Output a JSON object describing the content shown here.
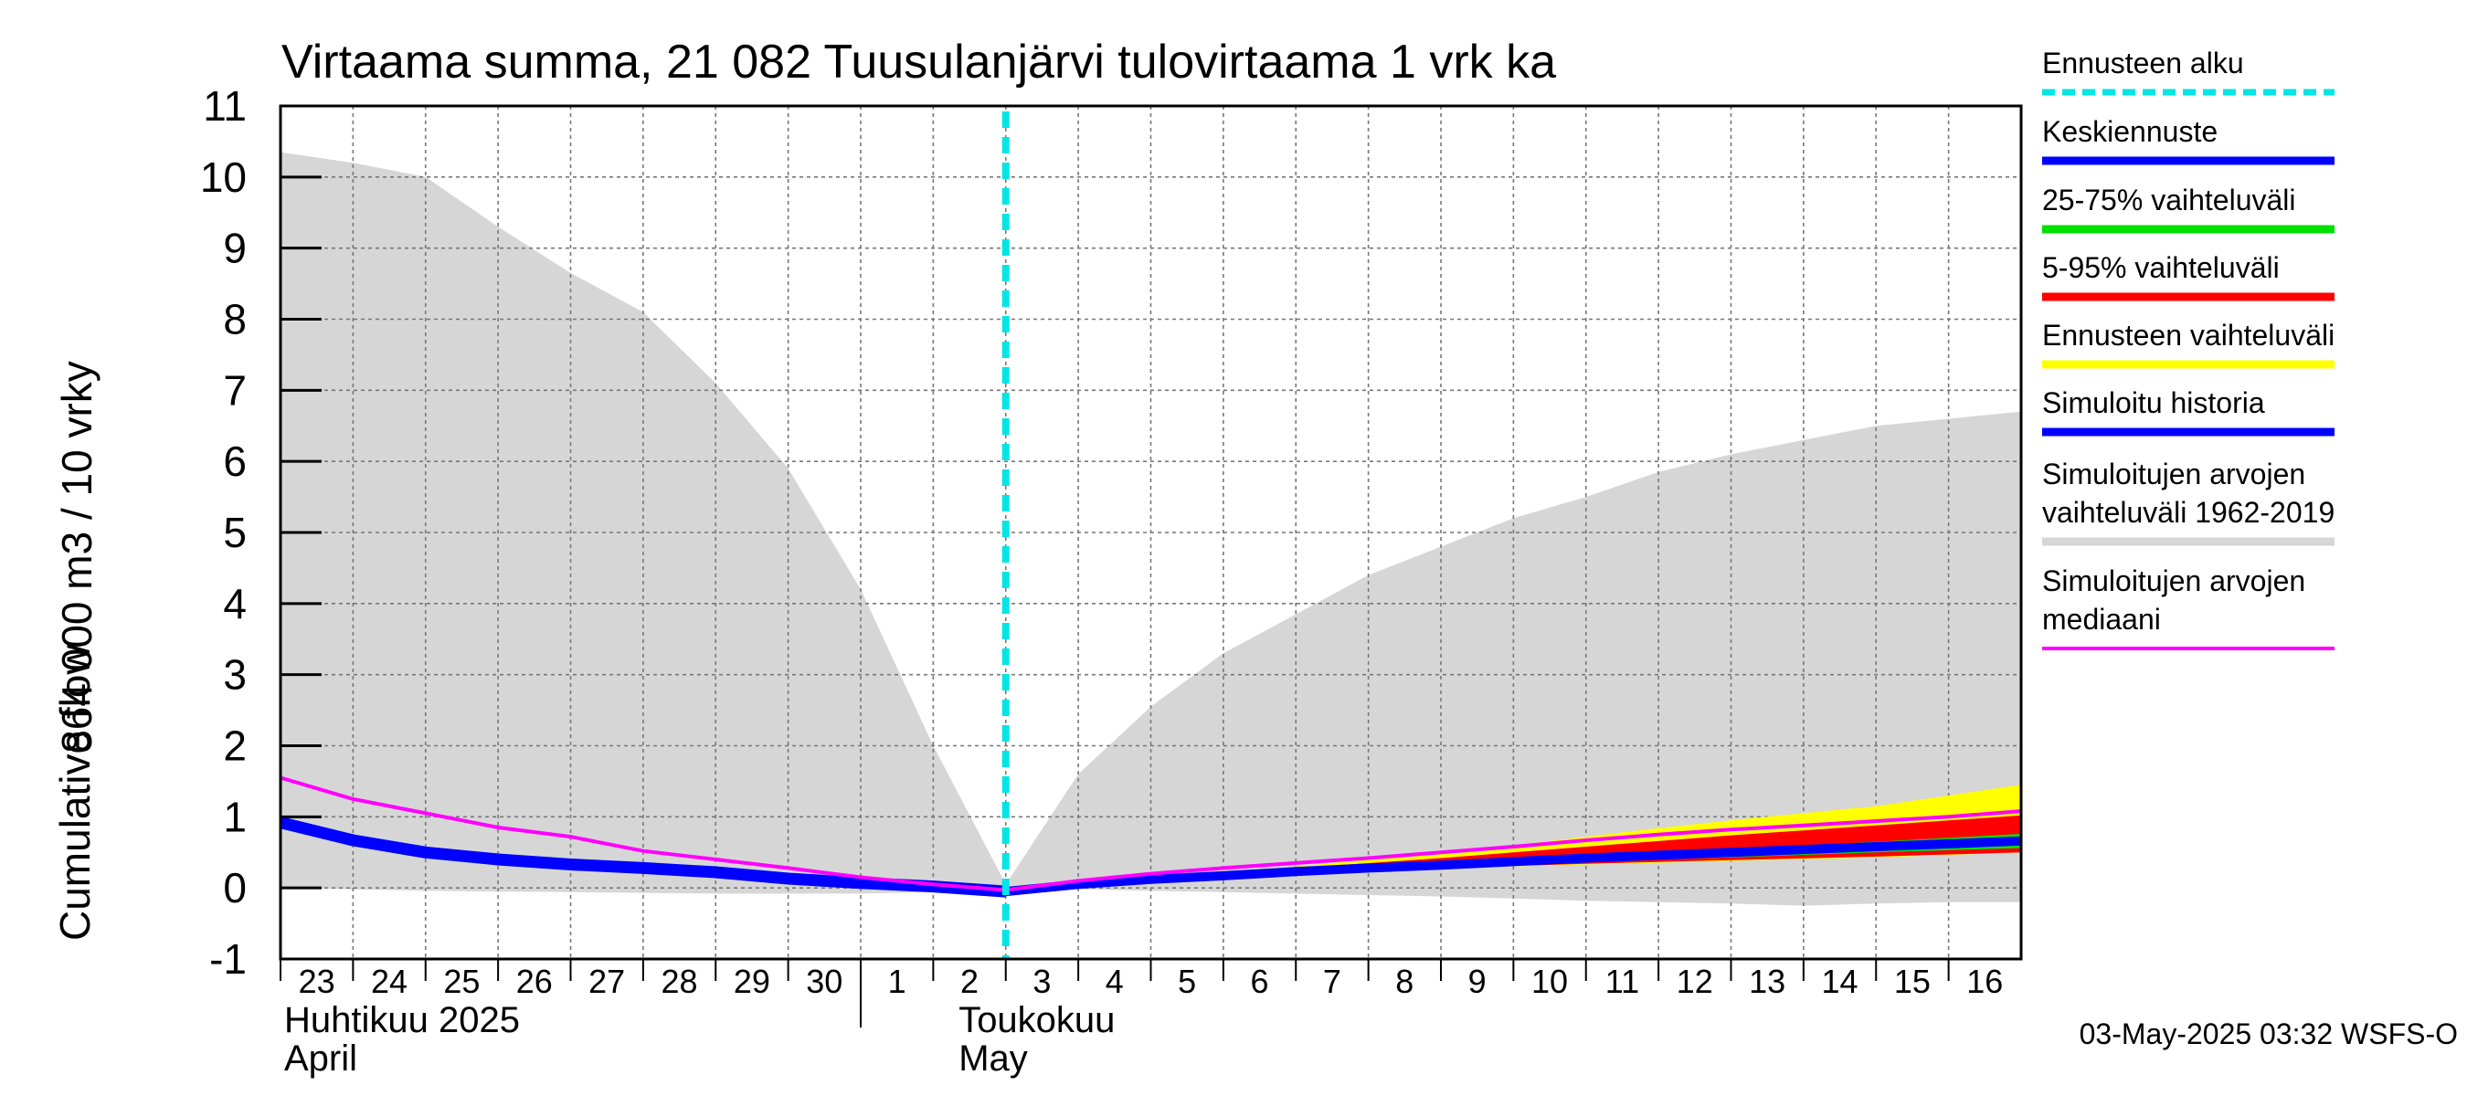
{
  "chart_data": {
    "type": "area",
    "title": "Virtaama summa, 21 082 Tuusulanjärvi tulovirtaama 1 vrk ka",
    "ylabel_line1": "Cumulative flow",
    "ylabel_line2": "864 000 m3 / 10 vrky",
    "ylim": [
      -1,
      11
    ],
    "yticks": [
      -1,
      0,
      1,
      2,
      3,
      4,
      5,
      6,
      7,
      8,
      9,
      10,
      11
    ],
    "x_start": "2025-04-23",
    "x_end": "2025-05-16",
    "xtick_labels": [
      "23",
      "24",
      "25",
      "26",
      "27",
      "28",
      "29",
      "30",
      "1",
      "2",
      "3",
      "4",
      "5",
      "6",
      "7",
      "8",
      "9",
      "10",
      "11",
      "12",
      "13",
      "14",
      "15",
      "16"
    ],
    "month_labels": [
      {
        "name": "Huhtikuu  2025",
        "english": "April",
        "at_day": 0
      },
      {
        "name": "Toukokuu",
        "english": "May",
        "at_day": 9.3
      }
    ],
    "month_boundary_day": 8,
    "forecast_start_day": 10,
    "grid": true,
    "series": [
      {
        "name": "Simuloitujen arvojen vaihteluväli 1962-2019 (upper)",
        "x": [
          0,
          1,
          2,
          3,
          4,
          5,
          6,
          7,
          8,
          9,
          10,
          11,
          12,
          13,
          14,
          15,
          16,
          17,
          18,
          19,
          20,
          21,
          22,
          23,
          24
        ],
        "values": [
          10.35,
          10.2,
          10.0,
          9.3,
          8.65,
          8.1,
          7.1,
          5.9,
          4.2,
          2.0,
          0.05,
          1.6,
          2.55,
          3.3,
          3.85,
          4.4,
          4.8,
          5.2,
          5.5,
          5.85,
          6.1,
          6.3,
          6.5,
          6.6,
          6.7
        ]
      },
      {
        "name": "Simuloitujen arvojen vaihteluväli 1962-2019 (lower)",
        "x": [
          0,
          1,
          2,
          3,
          4,
          5,
          6,
          7,
          8,
          9,
          10,
          11,
          12,
          13,
          14,
          15,
          16,
          17,
          18,
          19,
          20,
          21,
          22,
          23,
          24
        ],
        "values": [
          0.0,
          -0.02,
          -0.04,
          -0.05,
          -0.06,
          -0.07,
          -0.08,
          -0.08,
          -0.08,
          -0.06,
          0.0,
          -0.02,
          -0.04,
          -0.06,
          -0.08,
          -0.1,
          -0.12,
          -0.15,
          -0.18,
          -0.2,
          -0.22,
          -0.25,
          -0.22,
          -0.2,
          -0.2
        ]
      },
      {
        "name": "Ennusteen vaihteluväli (upper)",
        "x": [
          10,
          14,
          16,
          17,
          18,
          19,
          20,
          21,
          22,
          23,
          24
        ],
        "values": [
          0.0,
          0.3,
          0.5,
          0.6,
          0.72,
          0.84,
          0.95,
          1.05,
          1.15,
          1.3,
          1.45
        ]
      },
      {
        "name": "Ennusteen vaihteluväli (lower)",
        "x": [
          10,
          14,
          16,
          18,
          20,
          22,
          24
        ],
        "values": [
          0.0,
          0.22,
          0.28,
          0.33,
          0.38,
          0.43,
          0.5
        ]
      },
      {
        "name": "5-95% vaihteluväli (upper)",
        "x": [
          10,
          14,
          16,
          18,
          20,
          22,
          24
        ],
        "values": [
          0.0,
          0.28,
          0.42,
          0.58,
          0.74,
          0.88,
          1.02
        ]
      },
      {
        "name": "5-95% vaihteluväli (lower)",
        "x": [
          10,
          14,
          16,
          18,
          20,
          22,
          24
        ],
        "values": [
          0.0,
          0.22,
          0.28,
          0.34,
          0.39,
          0.44,
          0.5
        ]
      },
      {
        "name": "25-75% vaihteluväli (upper)",
        "x": [
          10,
          14,
          16,
          18,
          20,
          22,
          24
        ],
        "values": [
          0.0,
          0.26,
          0.35,
          0.45,
          0.55,
          0.65,
          0.76
        ]
      },
      {
        "name": "25-75% vaihteluväli (lower)",
        "x": [
          10,
          14,
          16,
          18,
          20,
          22,
          24
        ],
        "values": [
          0.0,
          0.23,
          0.3,
          0.37,
          0.43,
          0.5,
          0.56
        ]
      },
      {
        "name": "Simuloitujen arvojen mediaani",
        "x": [
          0,
          1,
          2,
          3,
          4,
          5,
          6,
          7,
          8,
          9,
          10,
          11,
          12,
          13,
          14,
          15,
          16,
          17,
          18,
          19,
          20,
          21,
          22,
          23,
          24
        ],
        "values": [
          1.55,
          1.25,
          1.05,
          0.85,
          0.72,
          0.52,
          0.4,
          0.28,
          0.15,
          0.05,
          -0.03,
          0.1,
          0.2,
          0.28,
          0.35,
          0.42,
          0.5,
          0.58,
          0.67,
          0.75,
          0.82,
          0.88,
          0.94,
          1.0,
          1.08
        ]
      },
      {
        "name": "Simuloitu historia",
        "x": [
          0,
          1,
          2,
          3,
          4,
          5,
          6,
          7,
          8,
          9,
          10
        ],
        "values": [
          0.92,
          0.67,
          0.5,
          0.4,
          0.33,
          0.28,
          0.22,
          0.13,
          0.07,
          0.02,
          -0.05
        ]
      },
      {
        "name": "Keskiennuste",
        "x": [
          10,
          11,
          12,
          13,
          14,
          15,
          16,
          17,
          18,
          19,
          20,
          21,
          22,
          23,
          24
        ],
        "values": [
          -0.05,
          0.05,
          0.12,
          0.17,
          0.23,
          0.28,
          0.32,
          0.37,
          0.42,
          0.46,
          0.5,
          0.54,
          0.58,
          0.62,
          0.66
        ]
      }
    ]
  },
  "legend": [
    {
      "label": "Ennusteen alku",
      "color": "#00e5e5",
      "style": "dashed"
    },
    {
      "label": "Keskiennuste",
      "color": "#0000ff",
      "style": "solid"
    },
    {
      "label": "25-75% vaihteluväli",
      "color": "#00e000",
      "style": "solid"
    },
    {
      "label": "5-95% vaihteluväli",
      "color": "#ff0000",
      "style": "solid"
    },
    {
      "label": "Ennusteen vaihteluväli",
      "color": "#ffff00",
      "style": "solid"
    },
    {
      "label": "Simuloitu historia",
      "color": "#0000ff",
      "style": "solid"
    },
    {
      "label": "Simuloitujen arvojen",
      "label2": "vaihteluväli 1962-2019",
      "color": "#d6d6d6",
      "style": "solid"
    },
    {
      "label": "Simuloitujen arvojen",
      "label2": "mediaani",
      "color": "#ff00ff",
      "style": "solid"
    }
  ],
  "timestamp": "03-May-2025 03:32 WSFS-O",
  "colors": {
    "envelope": "#d6d6d6",
    "forecast_range": "#ffff00",
    "p5_95": "#ff0000",
    "p25_75": "#00e000",
    "mean": "#0000ff",
    "history": "#0000ff",
    "median": "#ff00ff",
    "forecast_start": "#00e5e5",
    "grid": "#777777"
  }
}
